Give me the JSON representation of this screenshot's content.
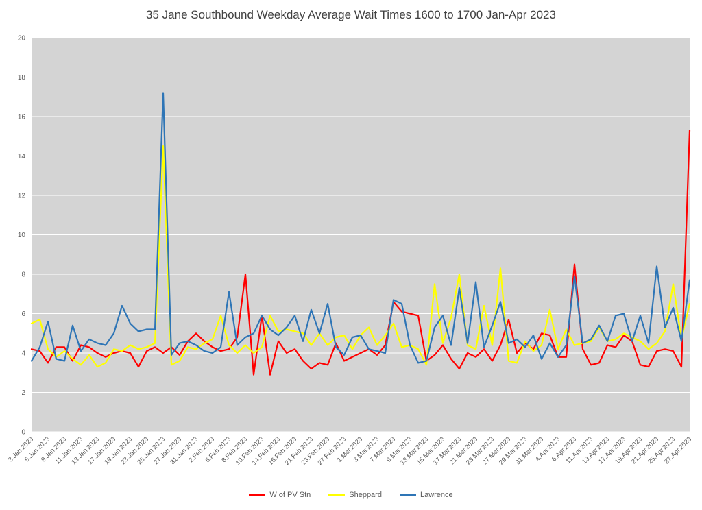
{
  "chart_data": {
    "type": "line",
    "title": "35 Jane Southbound Weekday Average Wait Times 1600 to 1700 Jan-Apr 2023",
    "xlabel": "",
    "ylabel": "",
    "plot_background": "#d4d4d4",
    "gridline_color": "#ffffff",
    "legend_position": "bottom",
    "y_axis": {
      "min": 0,
      "max": 20,
      "tick_step": 2,
      "ticks": [
        0,
        2,
        4,
        6,
        8,
        10,
        12,
        14,
        16,
        18,
        20
      ]
    },
    "points_per_tick": 2,
    "x_tick_labels": [
      "3.Jan.2023",
      "5.Jan.2023",
      "9.Jan.2023",
      "11.Jan.2023",
      "13.Jan.2023",
      "17.Jan.2023",
      "19.Jan.2023",
      "23.Jan.2023",
      "25.Jan.2023",
      "27.Jan.2023",
      "31.Jan.2023",
      "2.Feb.2023",
      "6.Feb.2023",
      "8.Feb.2023",
      "10.Feb.2023",
      "14.Feb.2023",
      "16.Feb.2023",
      "21.Feb.2023",
      "23.Feb.2023",
      "27.Feb.2023",
      "1.Mar.2023",
      "3.Mar.2023",
      "7.Mar.2023",
      "9.Mar.2023",
      "13.Mar.2023",
      "15.Mar.2023",
      "17.Mar.2023",
      "21.Mar.2023",
      "23.Mar.2023",
      "27.Mar.2023",
      "29.Mar.2023",
      "31.Mar.2023",
      "4.Apr.2023",
      "6.Apr.2023",
      "11.Apr.2023",
      "13.Apr.2023",
      "17.Apr.2023",
      "19.Apr.2023",
      "21.Apr.2023",
      "25.Apr.2023",
      "27.Apr.2023"
    ],
    "series": [
      {
        "name": "W of PV Stn",
        "color": "#ff0000",
        "values": [
          4.2,
          4.1,
          3.5,
          4.3,
          4.3,
          3.6,
          4.4,
          4.3,
          4.0,
          3.8,
          4.0,
          4.1,
          4.0,
          3.3,
          4.1,
          4.3,
          4.0,
          4.3,
          3.9,
          4.6,
          5.0,
          4.6,
          4.3,
          4.1,
          4.2,
          4.8,
          8.0,
          2.9,
          5.9,
          2.9,
          4.6,
          4.0,
          4.2,
          3.6,
          3.2,
          3.5,
          3.4,
          4.5,
          3.6,
          3.8,
          4.0,
          4.2,
          3.9,
          4.4,
          6.6,
          6.1,
          6.0,
          5.9,
          3.6,
          3.9,
          4.4,
          3.7,
          3.2,
          4.0,
          3.8,
          4.2,
          3.6,
          4.4,
          5.7,
          4.0,
          4.5,
          4.2,
          5.0,
          4.9,
          3.8,
          3.8,
          8.5,
          4.2,
          3.4,
          3.5,
          4.4,
          4.3,
          4.9,
          4.6,
          3.4,
          3.3,
          4.1,
          4.2,
          4.1,
          3.3,
          15.3
        ]
      },
      {
        "name": "Sheppard",
        "color": "#ffff00",
        "values": [
          5.5,
          5.7,
          4.2,
          3.8,
          4.1,
          3.7,
          3.4,
          3.9,
          3.3,
          3.5,
          4.2,
          4.1,
          4.4,
          4.2,
          4.3,
          4.5,
          14.5,
          3.4,
          3.6,
          4.3,
          4.2,
          4.5,
          4.7,
          5.9,
          4.4,
          4.0,
          4.4,
          4.0,
          4.3,
          5.9,
          5.1,
          5.2,
          5.1,
          5.0,
          4.4,
          5.0,
          4.4,
          4.8,
          4.9,
          4.2,
          4.9,
          5.3,
          4.4,
          4.9,
          5.5,
          4.3,
          4.4,
          4.2,
          3.4,
          7.5,
          4.5,
          5.8,
          8.0,
          4.4,
          4.2,
          6.4,
          4.4,
          8.3,
          3.6,
          3.5,
          4.6,
          4.1,
          4.4,
          6.2,
          4.2,
          5.2,
          4.4,
          4.5,
          4.6,
          5.3,
          4.6,
          4.7,
          5.0,
          4.8,
          4.6,
          4.2,
          4.5,
          5.1,
          7.5,
          4.7,
          6.5
        ]
      },
      {
        "name": "Lawrence",
        "color": "#2e75b6",
        "values": [
          3.6,
          4.3,
          5.6,
          3.7,
          3.6,
          5.4,
          4.1,
          4.7,
          4.5,
          4.4,
          5.0,
          6.4,
          5.5,
          5.1,
          5.2,
          5.2,
          17.2,
          3.9,
          4.5,
          4.6,
          4.4,
          4.1,
          4.0,
          4.3,
          7.1,
          4.4,
          4.8,
          5.0,
          5.9,
          5.2,
          4.9,
          5.3,
          5.9,
          4.6,
          6.2,
          5.0,
          6.5,
          4.3,
          3.9,
          4.8,
          4.9,
          4.2,
          4.1,
          4.0,
          6.7,
          6.5,
          4.4,
          3.5,
          3.6,
          5.3,
          5.9,
          4.4,
          7.3,
          4.5,
          7.6,
          4.3,
          5.4,
          6.6,
          4.5,
          4.7,
          4.3,
          4.9,
          3.7,
          4.5,
          3.8,
          4.4,
          7.9,
          4.5,
          4.7,
          5.4,
          4.6,
          5.9,
          6.0,
          4.6,
          5.9,
          4.5,
          8.4,
          5.3,
          6.3,
          4.6,
          7.7
        ]
      }
    ]
  },
  "legend": {
    "items": [
      {
        "label": "W of PV Stn"
      },
      {
        "label": "Sheppard"
      },
      {
        "label": "Lawrence"
      }
    ]
  }
}
